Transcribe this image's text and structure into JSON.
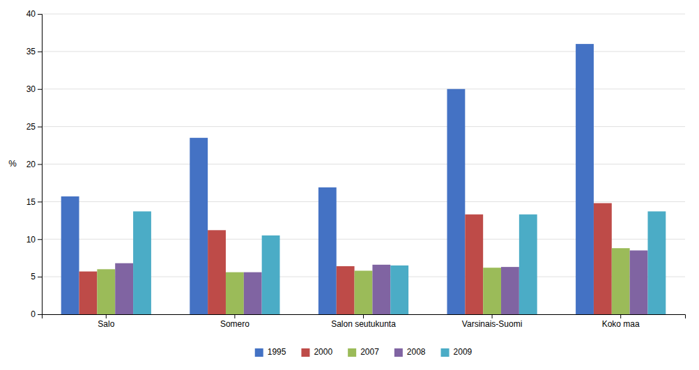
{
  "chart_data": {
    "type": "bar",
    "categories": [
      "Salo",
      "Somero",
      "Salon seutukunta",
      "Varsinais-Suomi",
      "Koko maa"
    ],
    "series": [
      {
        "name": "1995",
        "color": "#4472C4",
        "values": [
          15.7,
          23.5,
          16.9,
          30.0,
          36.0
        ]
      },
      {
        "name": "2000",
        "color": "#BE4B48",
        "values": [
          5.7,
          11.2,
          6.4,
          13.3,
          14.8
        ]
      },
      {
        "name": "2007",
        "color": "#9BBB59",
        "values": [
          6.0,
          5.6,
          5.8,
          6.2,
          8.8
        ]
      },
      {
        "name": "2008",
        "color": "#8064A2",
        "values": [
          6.8,
          5.6,
          6.6,
          6.3,
          8.5
        ]
      },
      {
        "name": "2009",
        "color": "#4BACC6",
        "values": [
          13.7,
          10.5,
          6.5,
          13.3,
          13.7
        ]
      }
    ],
    "ylabel": "%",
    "ylim": [
      0,
      40
    ],
    "yticks": [
      0,
      5,
      10,
      15,
      20,
      25,
      30,
      35,
      40
    ],
    "grid": true,
    "legend": "bottom"
  }
}
